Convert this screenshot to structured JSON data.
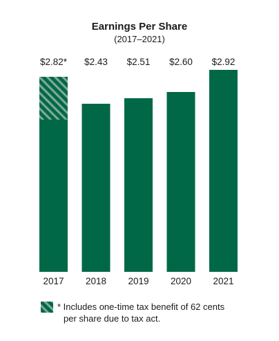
{
  "colors": {
    "bar": "#006847",
    "hatch": "#7fa896",
    "text": "#1a1a1a",
    "background": "#ffffff"
  },
  "chart_data": {
    "type": "bar",
    "title": "Earnings Per Share",
    "subtitle": "(2017–2021)",
    "categories": [
      "2017",
      "2018",
      "2019",
      "2020",
      "2021"
    ],
    "values": [
      2.82,
      2.43,
      2.51,
      2.6,
      2.92
    ],
    "value_labels": [
      "$2.82*",
      "$2.43",
      "$2.51",
      "$2.60",
      "$2.92"
    ],
    "highlighted_portion": {
      "category": "2017",
      "amount": 0.62,
      "pattern": "diagonal-stripes"
    },
    "ylim": [
      0,
      2.92
    ],
    "xlabel": "",
    "ylabel": "",
    "grid": false,
    "legend": {
      "symbol": "hatched-swatch",
      "text_line1": "* Includes one-time tax benefit of 62 cents",
      "text_line2": "per share due to tax act."
    }
  }
}
